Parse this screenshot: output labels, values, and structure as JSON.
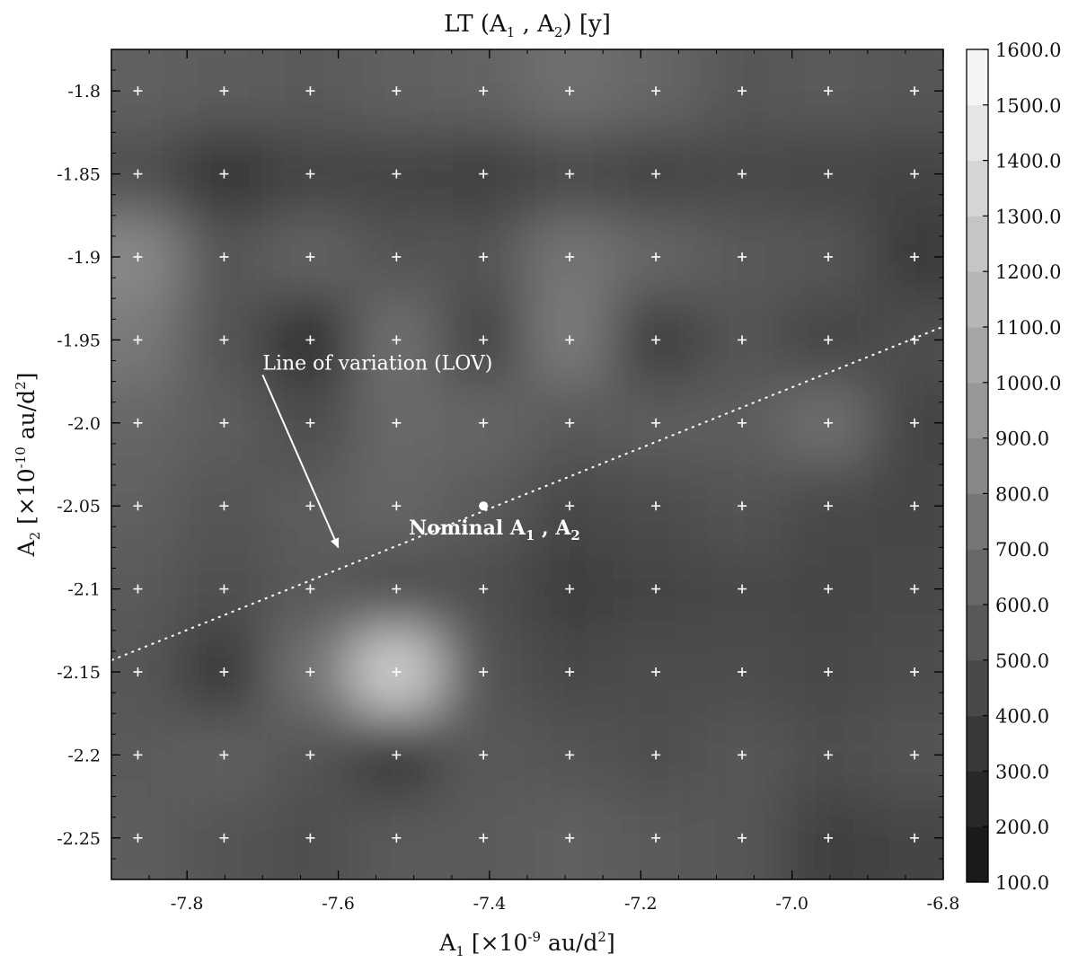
{
  "chart_data": {
    "type": "heatmap",
    "title_parts": {
      "main": "LT (A",
      "sub1": "1",
      "mid": " , A",
      "sub2": "2",
      "end": ") [y]"
    },
    "xlabel_parts": {
      "main": "A",
      "sub": "1",
      "mid": " [×10",
      "sup": "-9",
      "end": " au/d",
      "sup2": "2",
      "close": "]"
    },
    "ylabel_parts": {
      "main": "A",
      "sub": "2",
      "mid": " [×10",
      "sup": "-10",
      "end": " au/d",
      "sup2": "2",
      "close": "]"
    },
    "xlim": [
      -7.9,
      -6.8
    ],
    "ylim": [
      -2.275,
      -1.775
    ],
    "x_ticks": [
      -7.8,
      -7.6,
      -7.4,
      -7.2,
      -7.0,
      -6.8
    ],
    "x_tick_labels": [
      "-7.8",
      "-7.6",
      "-7.4",
      "-7.2",
      "-7.0",
      "-6.8"
    ],
    "y_ticks": [
      -1.8,
      -1.85,
      -1.9,
      -1.95,
      -2.0,
      -2.05,
      -2.1,
      -2.15,
      -2.2,
      -2.25
    ],
    "y_tick_labels": [
      "-1.8",
      "-1.85",
      "-1.9",
      "-1.95",
      "-2.0",
      "-2.05",
      "-2.1",
      "-2.15",
      "-2.2",
      "-2.25"
    ],
    "grid_x": [
      -7.865,
      -7.751,
      -7.637,
      -7.523,
      -7.408,
      -7.294,
      -7.18,
      -7.066,
      -6.952,
      -6.838
    ],
    "grid_y": [
      -1.8,
      -1.85,
      -1.9,
      -1.95,
      -2.0,
      -2.05,
      -2.1,
      -2.15,
      -2.2,
      -2.25
    ],
    "values_rows_top_to_bottom": [
      [
        600,
        580,
        560,
        600,
        620,
        700,
        640,
        540,
        560,
        540
      ],
      [
        500,
        330,
        430,
        420,
        400,
        460,
        420,
        460,
        440,
        430
      ],
      [
        860,
        540,
        620,
        520,
        520,
        740,
        640,
        560,
        540,
        360
      ],
      [
        760,
        520,
        280,
        700,
        420,
        780,
        380,
        520,
        420,
        500
      ],
      [
        640,
        580,
        480,
        660,
        640,
        560,
        580,
        580,
        700,
        430
      ],
      [
        600,
        520,
        580,
        640,
        560,
        460,
        480,
        520,
        460,
        440
      ],
      [
        560,
        500,
        560,
        500,
        500,
        380,
        420,
        460,
        440,
        460
      ],
      [
        540,
        340,
        720,
        1320,
        520,
        460,
        480,
        480,
        460,
        480
      ],
      [
        560,
        600,
        520,
        340,
        560,
        520,
        500,
        540,
        500,
        520
      ],
      [
        580,
        520,
        500,
        560,
        560,
        600,
        560,
        540,
        400,
        420
      ]
    ],
    "colorbar": {
      "min": 100,
      "max": 1600,
      "step": 100,
      "tick_labels": [
        "100.0",
        "200.0",
        "300.0",
        "400.0",
        "500.0",
        "600.0",
        "700.0",
        "800.0",
        "900.0",
        "1000.0",
        "1100.0",
        "1200.0",
        "1300.0",
        "1400.0",
        "1500.0",
        "1600.0"
      ]
    },
    "lov_line": {
      "x": [
        -7.9,
        -6.8
      ],
      "y": [
        -2.143,
        -1.942
      ]
    },
    "nominal_point": {
      "x": -7.408,
      "y": -2.05
    },
    "annotations": {
      "nominal": {
        "main": "Nominal A",
        "sub1": "1",
        "mid": " , A",
        "sub2": "2"
      },
      "lov": {
        "text": "Line of variation (LOV)",
        "text_xy": [
          -7.7,
          -1.97
        ],
        "arrow_to": [
          -7.6,
          -2.075
        ]
      }
    }
  }
}
